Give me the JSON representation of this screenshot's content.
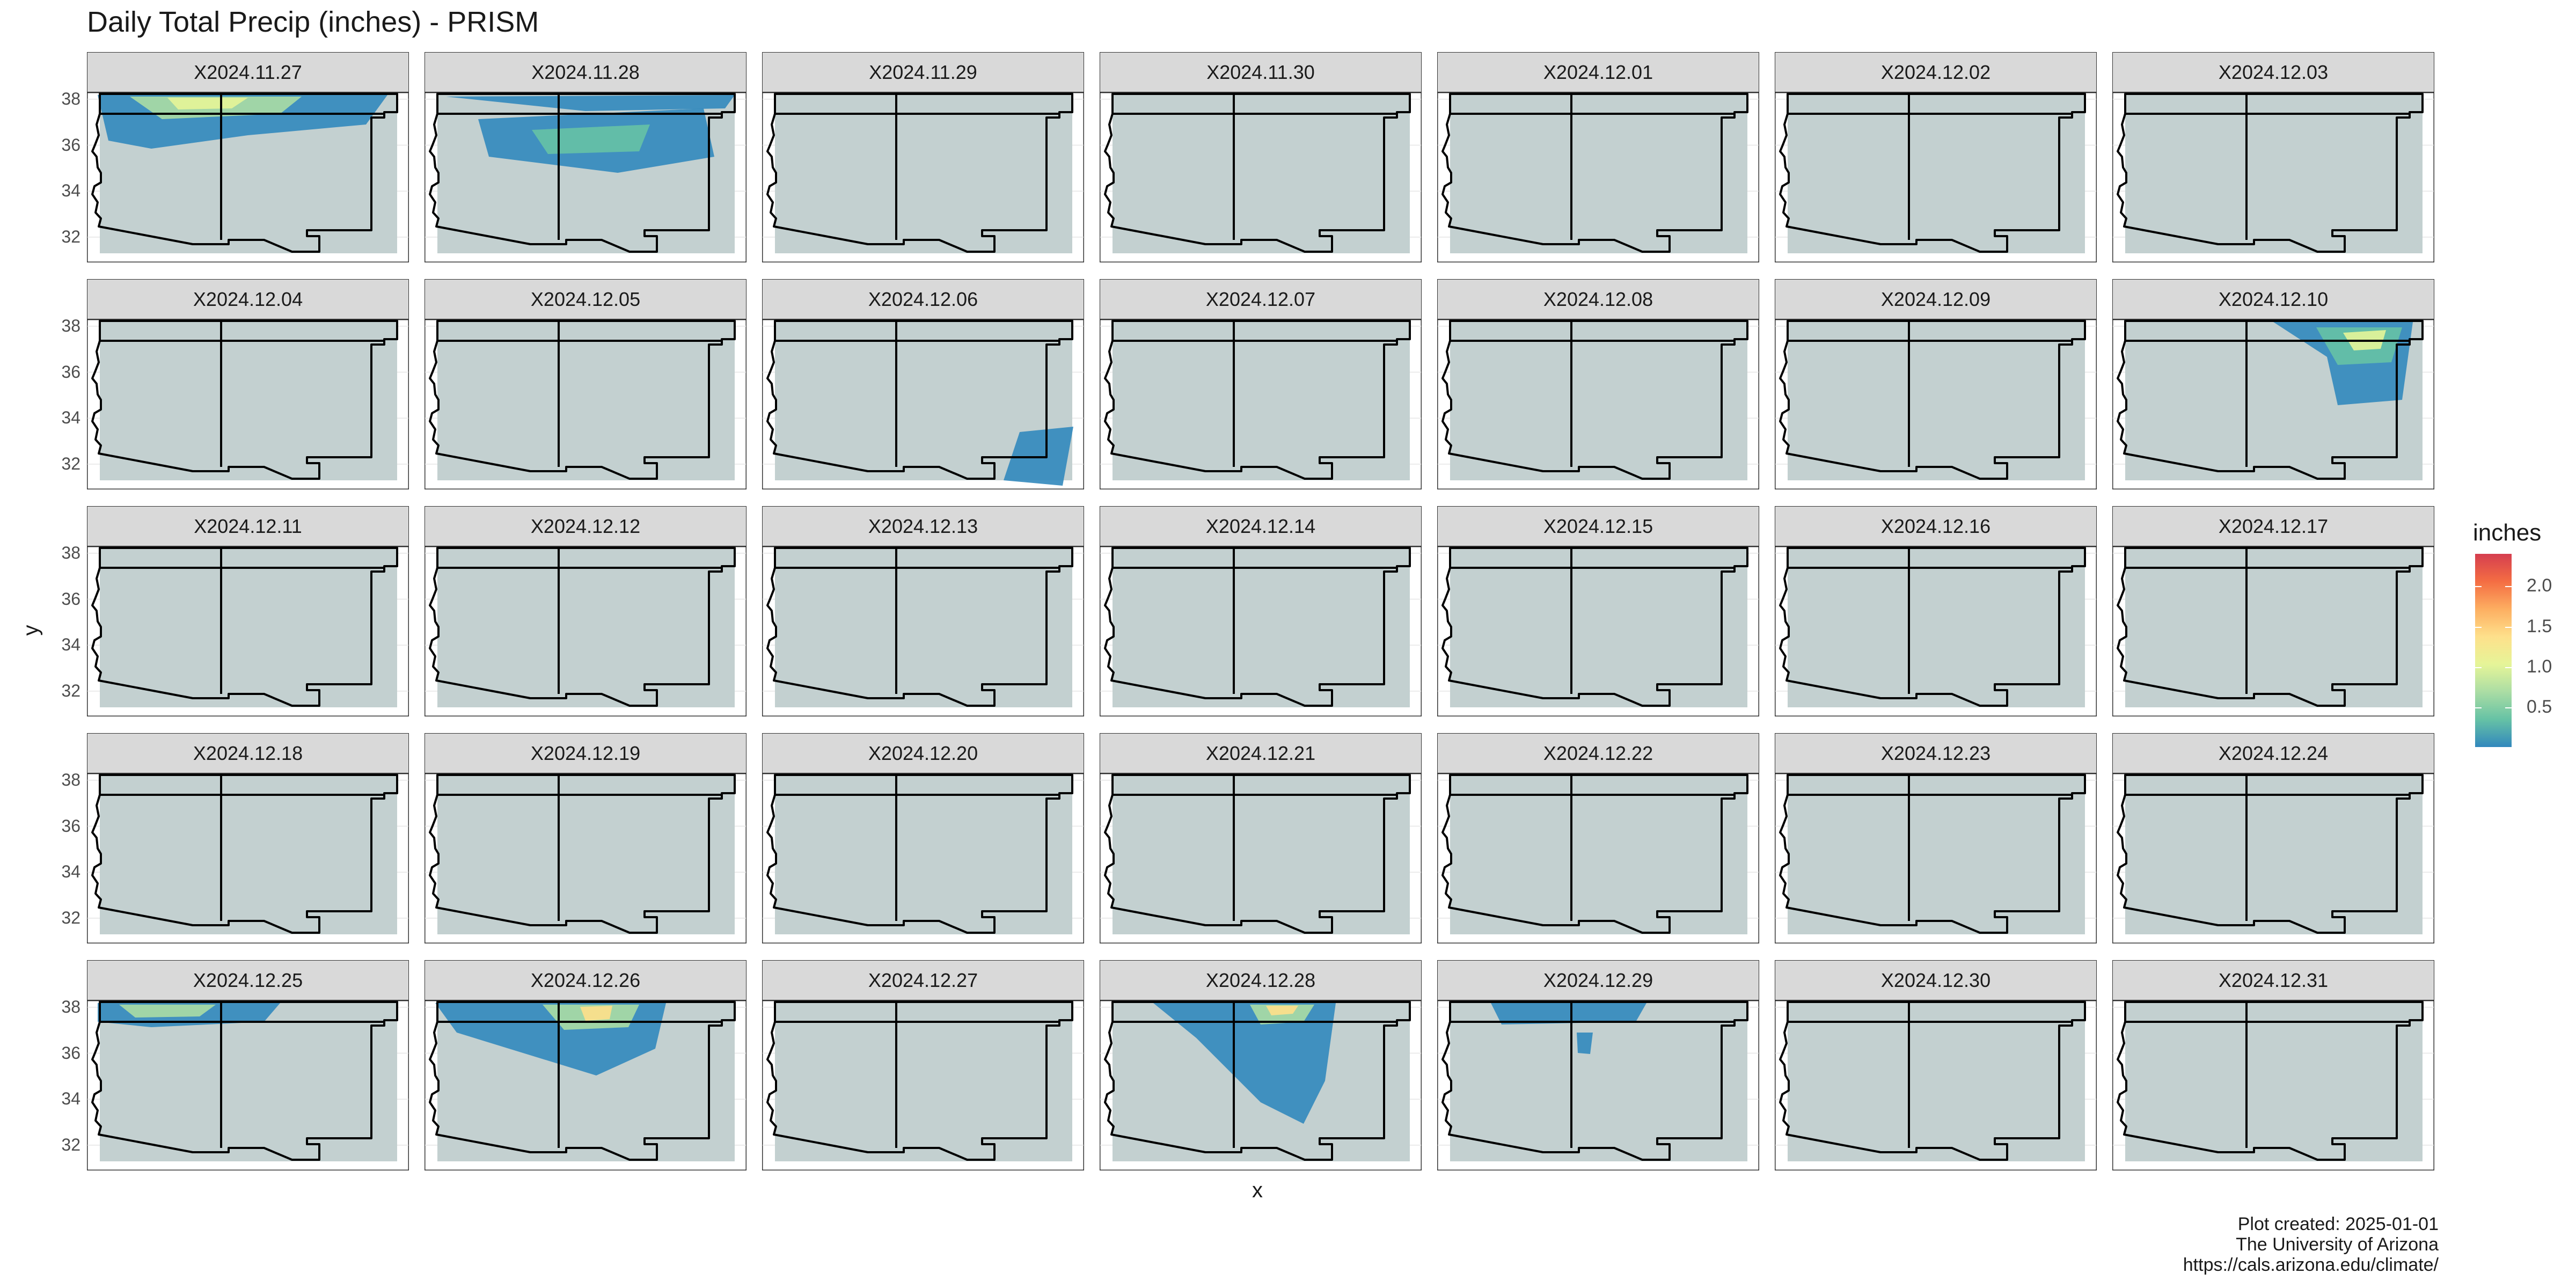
{
  "title": "Daily Total Precip (inches) - PRISM",
  "axes": {
    "x_title": "x",
    "y_title": "y",
    "y_ticks": [
      "32",
      "34",
      "36",
      "38"
    ]
  },
  "facets": [
    "X2024.11.27",
    "X2024.11.28",
    "X2024.11.29",
    "X2024.11.30",
    "X2024.12.01",
    "X2024.12.02",
    "X2024.12.03",
    "X2024.12.04",
    "X2024.12.05",
    "X2024.12.06",
    "X2024.12.07",
    "X2024.12.08",
    "X2024.12.09",
    "X2024.12.10",
    "X2024.12.11",
    "X2024.12.12",
    "X2024.12.13",
    "X2024.12.14",
    "X2024.12.15",
    "X2024.12.16",
    "X2024.12.17",
    "X2024.12.18",
    "X2024.12.19",
    "X2024.12.20",
    "X2024.12.21",
    "X2024.12.22",
    "X2024.12.23",
    "X2024.12.24",
    "X2024.12.25",
    "X2024.12.26",
    "X2024.12.27",
    "X2024.12.28",
    "X2024.12.29",
    "X2024.12.30",
    "X2024.12.31"
  ],
  "legend": {
    "title": "inches",
    "ticks": [
      "0.5",
      "1.0",
      "1.5",
      "2.0"
    ],
    "tick_values": [
      0.5,
      1.0,
      1.5,
      2.0
    ],
    "range": [
      0.01,
      2.4
    ],
    "colors": [
      "#3288bd",
      "#66c2a5",
      "#abdda4",
      "#e6f598",
      "#fee08b",
      "#fdae61",
      "#f46d43",
      "#d53e4f"
    ]
  },
  "map_colors": {
    "land": "#c3d0d0",
    "border": "#000000"
  },
  "caption": [
    "Plot created: 2025-01-01",
    "The University of Arizona",
    "https://cals.arizona.edu/climate/"
  ]
}
